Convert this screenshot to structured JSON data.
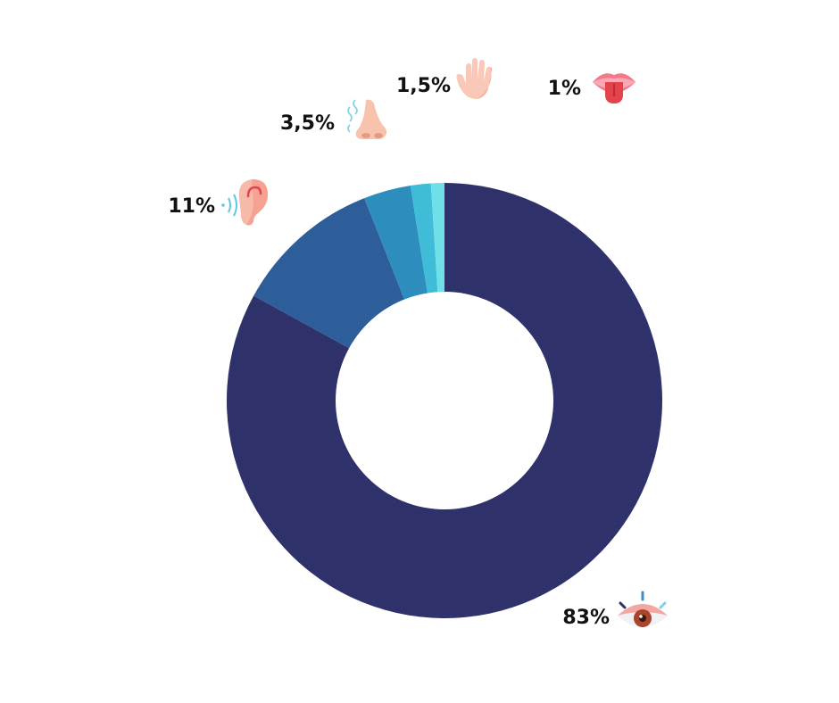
{
  "chart_data": {
    "type": "pie",
    "style": "donut",
    "slices": [
      {
        "icon": "eye-icon",
        "label": "83%",
        "value": 83,
        "color": "#2f316b"
      },
      {
        "icon": "ear-icon",
        "label": "11%",
        "value": 11,
        "color": "#2d5e9a"
      },
      {
        "icon": "nose-icon",
        "label": "3,5%",
        "value": 3.5,
        "color": "#2d8dbd"
      },
      {
        "icon": "hand-icon",
        "label": "1,5%",
        "value": 1.5,
        "color": "#3fbcd8"
      },
      {
        "icon": "tongue-icon",
        "label": "1%",
        "value": 1,
        "color": "#6fe0e8"
      }
    ],
    "legend": "none"
  }
}
